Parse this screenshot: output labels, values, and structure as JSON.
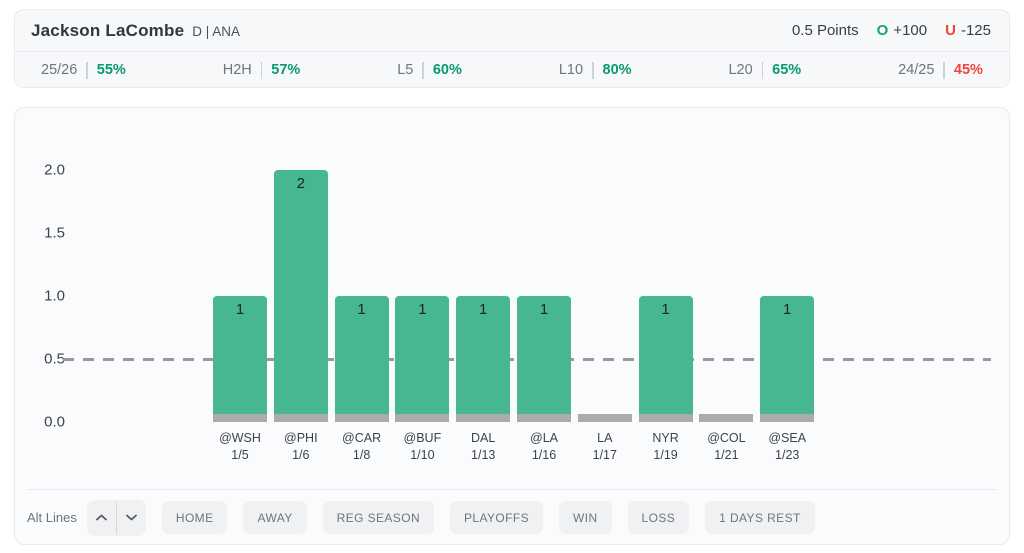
{
  "header": {
    "player": "Jackson LaCombe",
    "position": "D | ANA",
    "line": "0.5 Points",
    "over_label": "O",
    "over_odds": "+100",
    "under_label": "U",
    "under_odds": "-125"
  },
  "stats": [
    {
      "label": "25/26",
      "value": "55%",
      "color": "green"
    },
    {
      "label": "H2H",
      "value": "57%",
      "color": "green"
    },
    {
      "label": "L5",
      "value": "60%",
      "color": "green"
    },
    {
      "label": "L10",
      "value": "80%",
      "color": "green"
    },
    {
      "label": "L20",
      "value": "65%",
      "color": "green"
    },
    {
      "label": "24/25",
      "value": "45%",
      "color": "red"
    }
  ],
  "chart_data": {
    "type": "bar",
    "title": "",
    "xlabel": "",
    "ylabel": "",
    "categories": [
      "@WSH",
      "@PHI",
      "@CAR",
      "@BUF",
      "DAL",
      "@LA",
      "LA",
      "NYR",
      "@COL",
      "@SEA"
    ],
    "dates": [
      "1/5",
      "1/6",
      "1/8",
      "1/10",
      "1/13",
      "1/16",
      "1/17",
      "1/19",
      "1/21",
      "1/23"
    ],
    "values": [
      1,
      2,
      1,
      1,
      1,
      1,
      0,
      1,
      0,
      1
    ],
    "y_ticks": [
      "2.0",
      "1.5",
      "1.0",
      "0.5",
      "0.0"
    ],
    "ylim": [
      0,
      2.0
    ],
    "threshold_line": 0.5,
    "grid": false,
    "legend": "none",
    "bar_color": "#46b78f",
    "zero_bar_color": "#a9abad",
    "threshold_color": "#97999c"
  },
  "controls": {
    "alt_lines_label": "Alt Lines",
    "stepper_up_icon": "chevron-up",
    "stepper_down_icon": "chevron-down",
    "filters": [
      "HOME",
      "AWAY",
      "REG SEASON",
      "PLAYOFFS",
      "WIN",
      "LOSS",
      "1 DAYS REST"
    ]
  },
  "colors": {
    "over_green": "#18a573",
    "under_red": "#f04438",
    "stat_green": "#089b6d",
    "stat_red": "#f2453d",
    "card_bg": "#f7f8f9",
    "chart_bg": "#fafbfc",
    "border": "#e9ebee"
  }
}
